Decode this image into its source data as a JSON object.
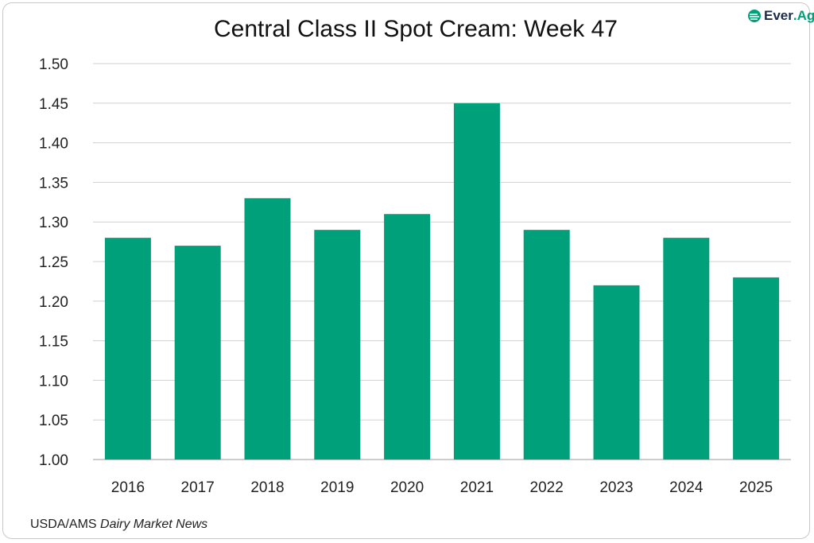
{
  "chart_data": {
    "type": "bar",
    "title": "Central Class II Spot Cream: Week 47",
    "categories": [
      "2016",
      "2017",
      "2018",
      "2019",
      "2020",
      "2021",
      "2022",
      "2023",
      "2024",
      "2025"
    ],
    "values": [
      1.28,
      1.27,
      1.33,
      1.29,
      1.31,
      1.45,
      1.29,
      1.22,
      1.28,
      1.23
    ],
    "ylim": [
      1.0,
      1.5
    ],
    "yticks": [
      "1.00",
      "1.05",
      "1.10",
      "1.15",
      "1.20",
      "1.25",
      "1.30",
      "1.35",
      "1.40",
      "1.45",
      "1.50"
    ],
    "xlabel": "",
    "ylabel": "",
    "grid": true,
    "bar_color": "#00a07a"
  },
  "logo": {
    "part1": "Ever",
    "part2": ".Ag"
  },
  "source": {
    "prefix": "USDA/AMS ",
    "italic": "Dairy Market News"
  }
}
